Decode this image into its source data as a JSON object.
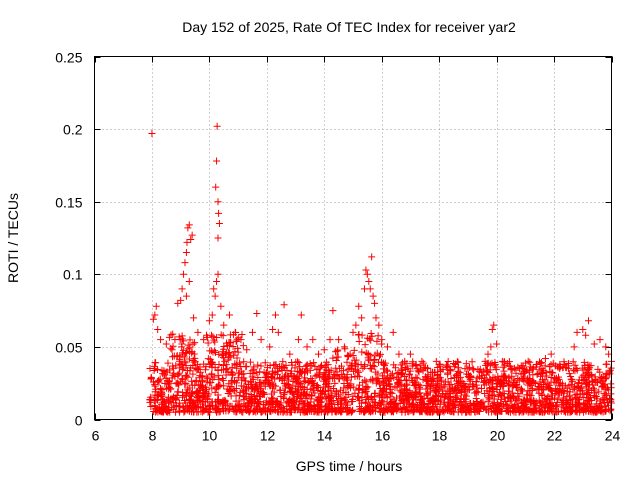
{
  "chart_data": {
    "type": "scatter",
    "title": "Day 152 of 2025, Rate Of TEC Index for receiver yar2",
    "xlabel": "GPS time / hours",
    "ylabel": "ROTI / TECUs",
    "xlim": [
      6,
      24
    ],
    "ylim": [
      0,
      0.25
    ],
    "xticks": [
      6,
      8,
      10,
      12,
      14,
      16,
      18,
      20,
      22,
      24
    ],
    "xtick_labels": [
      "6",
      "8",
      "10",
      "12",
      "14",
      "16",
      "18",
      "20",
      "22",
      "24"
    ],
    "yticks": [
      0,
      0.05,
      0.1,
      0.15,
      0.2,
      0.25
    ],
    "ytick_labels": [
      "0",
      "0.05",
      "0.1",
      "0.15",
      "0.2",
      "0.25"
    ],
    "grid": true,
    "marker": "plus",
    "color": "#ff0000",
    "series": [
      {
        "name": "ROTI",
        "points": [
          [
            8.0,
            0.197
          ],
          [
            8.05,
            0.069
          ],
          [
            8.1,
            0.072
          ],
          [
            8.15,
            0.078
          ],
          [
            8.2,
            0.062
          ],
          [
            8.3,
            0.055
          ],
          [
            8.5,
            0.052
          ],
          [
            8.7,
            0.048
          ],
          [
            8.8,
            0.055
          ],
          [
            8.9,
            0.08
          ],
          [
            9.0,
            0.082
          ],
          [
            9.05,
            0.09
          ],
          [
            9.1,
            0.1
          ],
          [
            9.15,
            0.108
          ],
          [
            9.2,
            0.115
          ],
          [
            9.22,
            0.122
          ],
          [
            9.25,
            0.132
          ],
          [
            9.3,
            0.134
          ],
          [
            9.35,
            0.124
          ],
          [
            9.4,
            0.127
          ],
          [
            9.3,
            0.095
          ],
          [
            9.2,
            0.085
          ],
          [
            9.45,
            0.07
          ],
          [
            9.6,
            0.06
          ],
          [
            9.8,
            0.055
          ],
          [
            9.9,
            0.058
          ],
          [
            10.0,
            0.068
          ],
          [
            10.1,
            0.072
          ],
          [
            10.15,
            0.09
          ],
          [
            10.2,
            0.085
          ],
          [
            10.22,
            0.16
          ],
          [
            10.25,
            0.178
          ],
          [
            10.27,
            0.202
          ],
          [
            10.3,
            0.15
          ],
          [
            10.32,
            0.142
          ],
          [
            10.35,
            0.135
          ],
          [
            10.3,
            0.125
          ],
          [
            10.3,
            0.1
          ],
          [
            10.25,
            0.095
          ],
          [
            10.4,
            0.078
          ],
          [
            10.5,
            0.065
          ],
          [
            10.7,
            0.072
          ],
          [
            10.9,
            0.06
          ],
          [
            11.1,
            0.055
          ],
          [
            11.3,
            0.048
          ],
          [
            11.5,
            0.06
          ],
          [
            11.65,
            0.073
          ],
          [
            11.8,
            0.055
          ],
          [
            12.1,
            0.05
          ],
          [
            12.2,
            0.062
          ],
          [
            12.3,
            0.072
          ],
          [
            12.4,
            0.06
          ],
          [
            12.6,
            0.079
          ],
          [
            12.8,
            0.045
          ],
          [
            13.1,
            0.055
          ],
          [
            13.2,
            0.072
          ],
          [
            13.4,
            0.05
          ],
          [
            13.6,
            0.055
          ],
          [
            13.8,
            0.045
          ],
          [
            14.0,
            0.048
          ],
          [
            14.2,
            0.055
          ],
          [
            14.3,
            0.075
          ],
          [
            14.5,
            0.055
          ],
          [
            14.7,
            0.05
          ],
          [
            14.9,
            0.045
          ],
          [
            15.0,
            0.06
          ],
          [
            15.1,
            0.065
          ],
          [
            15.2,
            0.078
          ],
          [
            15.3,
            0.07
          ],
          [
            15.4,
            0.09
          ],
          [
            15.45,
            0.103
          ],
          [
            15.5,
            0.1
          ],
          [
            15.55,
            0.095
          ],
          [
            15.6,
            0.09
          ],
          [
            15.65,
            0.112
          ],
          [
            15.7,
            0.085
          ],
          [
            15.75,
            0.08
          ],
          [
            15.8,
            0.07
          ],
          [
            15.9,
            0.065
          ],
          [
            16.0,
            0.055
          ],
          [
            16.2,
            0.05
          ],
          [
            16.4,
            0.06
          ],
          [
            16.6,
            0.045
          ],
          [
            16.8,
            0.04
          ],
          [
            17.0,
            0.045
          ],
          [
            17.2,
            0.038
          ],
          [
            17.4,
            0.04
          ],
          [
            17.6,
            0.035
          ],
          [
            17.9,
            0.04
          ],
          [
            18.0,
            0.038
          ],
          [
            18.3,
            0.032
          ],
          [
            18.6,
            0.03
          ],
          [
            18.9,
            0.035
          ],
          [
            19.1,
            0.03
          ],
          [
            19.4,
            0.033
          ],
          [
            19.6,
            0.04
          ],
          [
            19.7,
            0.045
          ],
          [
            19.8,
            0.05
          ],
          [
            19.85,
            0.062
          ],
          [
            19.9,
            0.065
          ],
          [
            20.0,
            0.052
          ],
          [
            20.2,
            0.04
          ],
          [
            20.5,
            0.035
          ],
          [
            20.8,
            0.035
          ],
          [
            21.1,
            0.04
          ],
          [
            21.4,
            0.038
          ],
          [
            21.7,
            0.042
          ],
          [
            21.9,
            0.045
          ],
          [
            22.2,
            0.038
          ],
          [
            22.5,
            0.035
          ],
          [
            22.7,
            0.05
          ],
          [
            22.8,
            0.06
          ],
          [
            23.0,
            0.062
          ],
          [
            23.1,
            0.058
          ],
          [
            23.2,
            0.068
          ],
          [
            23.4,
            0.052
          ],
          [
            23.6,
            0.055
          ],
          [
            23.8,
            0.05
          ],
          [
            23.9,
            0.045
          ],
          [
            24.0,
            0.04
          ]
        ],
        "background_band": {
          "x_start": 7.9,
          "x_end": 24.0,
          "typical_low": 0.005,
          "typical_high": 0.04
        }
      }
    ]
  }
}
